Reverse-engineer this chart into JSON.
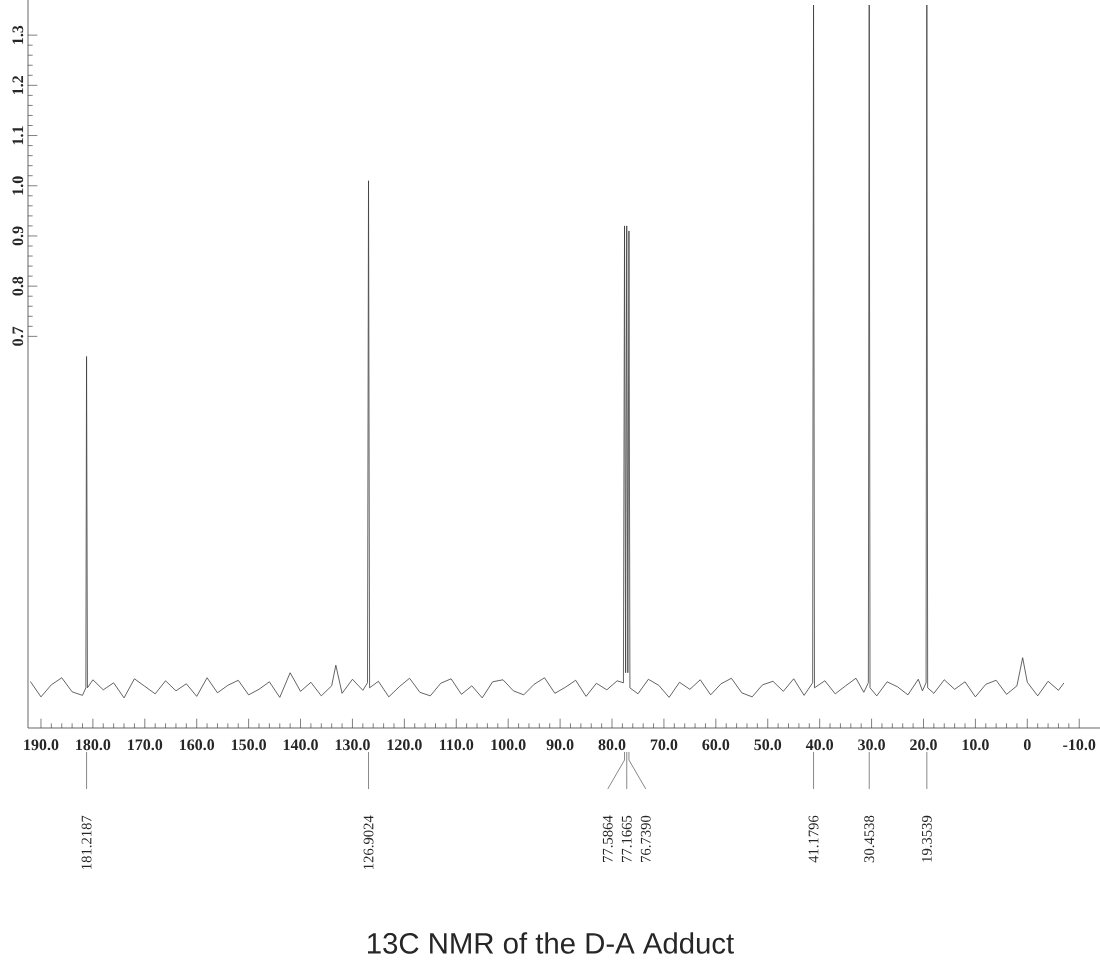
{
  "chart_data": {
    "type": "line",
    "title": "13C NMR of the D-A Adduct",
    "xlim": [
      192.5,
      -14
    ],
    "xticks": [
      {
        "value": 190,
        "label": "190.0"
      },
      {
        "value": 180,
        "label": "180.0"
      },
      {
        "value": 170,
        "label": "170.0"
      },
      {
        "value": 160,
        "label": "160.0"
      },
      {
        "value": 150,
        "label": "150.0"
      },
      {
        "value": 140,
        "label": "140.0"
      },
      {
        "value": 130,
        "label": "130.0"
      },
      {
        "value": 120,
        "label": "120.0"
      },
      {
        "value": 110,
        "label": "110.0"
      },
      {
        "value": 100,
        "label": "100.0"
      },
      {
        "value": 90,
        "label": "90.0"
      },
      {
        "value": 80,
        "label": "80.0"
      },
      {
        "value": 70,
        "label": "70.0"
      },
      {
        "value": 60,
        "label": "60.0"
      },
      {
        "value": 50,
        "label": "50.0"
      },
      {
        "value": 40,
        "label": "40.0"
      },
      {
        "value": 30,
        "label": "30.0"
      },
      {
        "value": 20,
        "label": "20.0"
      },
      {
        "value": 10,
        "label": "10.0"
      },
      0,
      {
        "value": -10,
        "label": "-10.0"
      }
    ],
    "ylim": [
      -0.08,
      1.37
    ],
    "yticks": [
      0.7,
      0.8,
      0.9,
      {
        "value": 1,
        "label": "1.0"
      },
      1.1,
      1.2,
      1.3
    ],
    "color": "#3c3c3c",
    "x": [
      192,
      190,
      188,
      186,
      184,
      182,
      181.35,
      181.2187,
      181.05,
      180,
      178,
      176,
      174,
      172,
      170,
      168,
      166,
      164,
      162,
      160,
      158,
      156,
      154,
      152,
      150,
      148,
      146,
      144,
      142,
      140,
      138,
      136,
      134,
      133.2,
      132,
      130,
      128,
      127.1,
      126.9024,
      126.7,
      125,
      123,
      121,
      119,
      117,
      115,
      113,
      111,
      109,
      107,
      105,
      103,
      101,
      99,
      97,
      95,
      93,
      91,
      89,
      87,
      85,
      83,
      81,
      79,
      77.8,
      77.5864,
      77.38,
      77.1665,
      76.95,
      76.739,
      76.55,
      75,
      73,
      71,
      69,
      67,
      65,
      63,
      61,
      59,
      57,
      55,
      53,
      51,
      49,
      47,
      45,
      43,
      41.35,
      41.1796,
      41.0,
      39,
      37,
      35,
      33,
      31.5,
      30.62,
      30.4538,
      30.3,
      29,
      27,
      25,
      23,
      21,
      20.2,
      19.5,
      19.3539,
      19.2,
      18,
      16,
      14,
      12,
      10,
      8,
      6,
      4,
      2,
      0.9,
      0,
      -2,
      -4,
      -6,
      -7
    ],
    "values": [
      0.012,
      -0.018,
      0.006,
      0.02,
      -0.008,
      -0.015,
      0,
      0.66,
      0,
      0.016,
      -0.004,
      0.01,
      -0.02,
      0.018,
      0.003,
      -0.012,
      0.014,
      -0.006,
      0.008,
      -0.017,
      0.02,
      -0.01,
      0.005,
      0.015,
      -0.014,
      -0.003,
      0.012,
      -0.019,
      0.03,
      -0.007,
      0.011,
      -0.016,
      0.004,
      0.045,
      -0.011,
      0.017,
      -0.005,
      0.01,
      1.01,
      0,
      0.013,
      -0.018,
      0.002,
      0.019,
      -0.009,
      -0.016,
      0.009,
      0.018,
      -0.013,
      0.004,
      -0.02,
      0.012,
      0.016,
      -0.006,
      -0.014,
      0.007,
      0.02,
      -0.011,
      0.001,
      0.015,
      -0.017,
      0.009,
      -0.004,
      0.014,
      0.01,
      0.92,
      0.03,
      0.92,
      0.03,
      0.91,
      0,
      -0.012,
      0.017,
      0.005,
      -0.019,
      0.011,
      -0.003,
      0.016,
      -0.014,
      0.008,
      0.019,
      -0.01,
      -0.018,
      0.006,
      0.013,
      -0.007,
      0.018,
      -0.015,
      0.01,
      1.36,
      0,
      0.014,
      -0.012,
      0.004,
      0.019,
      -0.009,
      0.01,
      1.36,
      0,
      -0.016,
      0.012,
      0.002,
      -0.014,
      0.017,
      -0.006,
      0.01,
      1.36,
      0,
      -0.011,
      0.016,
      -0.003,
      0.012,
      -0.018,
      0.007,
      0.015,
      -0.013,
      0.004,
      0.06,
      0.011,
      -0.016,
      0.013,
      -0.005,
      0.009
    ],
    "annotations": [
      "181.2187",
      "126.9024",
      "77.5864",
      "77.1665",
      "76.7390",
      "41.1796",
      "30.4538",
      "19.3539"
    ]
  }
}
